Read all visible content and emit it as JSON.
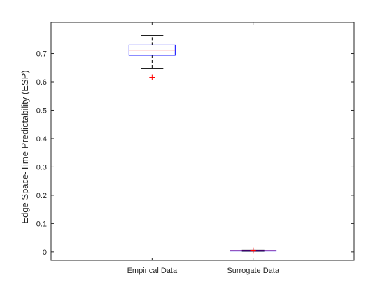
{
  "chart_data": {
    "type": "box",
    "title": "",
    "xlabel": "",
    "ylabel": "Edge Space-Time Predictability (ESP)",
    "categories": [
      "Empirical Data",
      "Surrogate Data"
    ],
    "ylim": [
      -0.03,
      0.81
    ],
    "yticks": [
      0,
      0.1,
      0.2,
      0.3,
      0.4,
      0.5,
      0.6,
      0.7
    ],
    "ytick_labels": [
      "0",
      "0.1",
      "0.2",
      "0.3",
      "0.4",
      "0.5",
      "0.6",
      "0.7"
    ],
    "grid": false,
    "legend": "none",
    "boxes": [
      {
        "category": "Empirical Data",
        "whisker_low": 0.648,
        "q1": 0.694,
        "median": 0.712,
        "q3": 0.73,
        "whisker_high": 0.764,
        "outliers": [
          0.616
        ]
      },
      {
        "category": "Surrogate Data",
        "whisker_low": 0.002,
        "q1": 0.003,
        "median": 0.004,
        "q3": 0.005,
        "whisker_high": 0.006,
        "outliers": [
          0.003,
          0.005,
          0.006
        ]
      }
    ],
    "colors": {
      "axes": "#262626",
      "box": "#0000ff",
      "median": "#ff0000",
      "whisker": "#000000",
      "outlier": "#ff0000"
    }
  }
}
